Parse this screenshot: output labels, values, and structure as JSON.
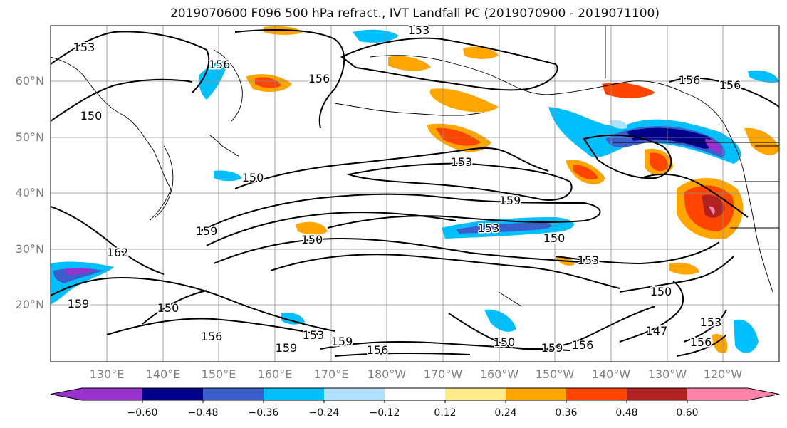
{
  "title": "2019070600 F096 500 hPa refract., IVT Landfall PC (2019070900 - 2019071100)",
  "map": {
    "lat_labels": [
      "60°N",
      "50°N",
      "40°N",
      "30°N",
      "20°N"
    ],
    "lon_labels": [
      "130°E",
      "140°E",
      "150°E",
      "160°E",
      "170°E",
      "180°W",
      "170°W",
      "160°W",
      "150°W",
      "140°W",
      "130°W",
      "120°W"
    ],
    "contour_labels": [
      "153",
      "153",
      "156",
      "156",
      "156",
      "156",
      "150",
      "153",
      "159",
      "159",
      "150",
      "162",
      "153",
      "159",
      "150",
      "150",
      "153",
      "150",
      "156",
      "153",
      "159",
      "156",
      "150",
      "159",
      "156",
      "150",
      "147",
      "153",
      "156",
      "159"
    ]
  },
  "colorbar": {
    "ticks": [
      "−0.60",
      "−0.48",
      "−0.36",
      "−0.24",
      "−0.12",
      "0.12",
      "0.24",
      "0.36",
      "0.48",
      "0.60"
    ],
    "colors": [
      "#9932cc",
      "#00008b",
      "#3a5fcd",
      "#00bfff",
      "#b0e2ff",
      "#ffffff",
      "#ffec8b",
      "#ffa500",
      "#ff4500",
      "#b22222",
      "#ff82ab"
    ]
  }
}
